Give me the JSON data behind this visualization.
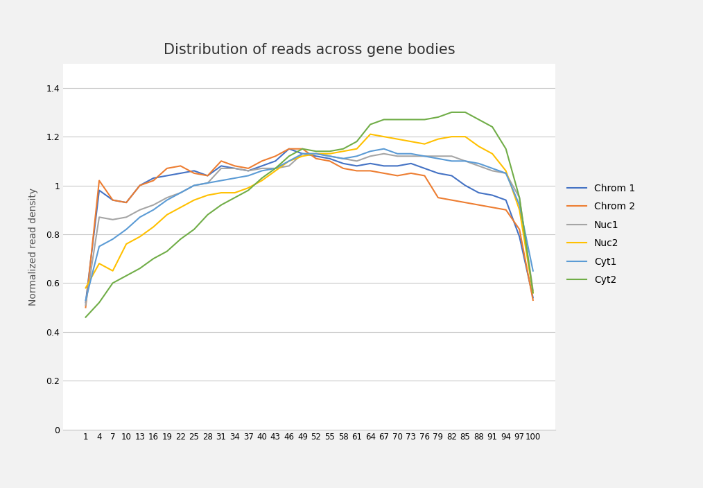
{
  "title": "Distribution of reads across gene bodies",
  "ylabel": "Normalized read density",
  "xlabel": "",
  "x_ticks": [
    1,
    4,
    7,
    10,
    13,
    16,
    19,
    22,
    25,
    28,
    31,
    34,
    37,
    40,
    43,
    46,
    49,
    52,
    55,
    58,
    61,
    64,
    67,
    70,
    73,
    76,
    79,
    82,
    85,
    88,
    91,
    94,
    97,
    100
  ],
  "ylim": [
    0,
    1.5
  ],
  "ytick_vals": [
    0,
    0.2,
    0.4,
    0.6,
    0.8,
    1.0,
    1.2,
    1.4
  ],
  "ytick_labels": [
    "0",
    "0.2",
    "0.4",
    "0.6",
    "0.8",
    "1",
    "1.2",
    "1.4"
  ],
  "fig_bg_color": "#f2f2f2",
  "plot_bg_color": "#ffffff",
  "series": {
    "Chrom 1": {
      "color": "#4472c4",
      "values": [
        0.52,
        0.98,
        0.94,
        0.93,
        1.0,
        1.03,
        1.04,
        1.05,
        1.06,
        1.04,
        1.08,
        1.07,
        1.06,
        1.08,
        1.1,
        1.15,
        1.13,
        1.12,
        1.11,
        1.09,
        1.08,
        1.09,
        1.08,
        1.08,
        1.09,
        1.07,
        1.05,
        1.04,
        1.0,
        0.97,
        0.96,
        0.94,
        0.79,
        0.54
      ]
    },
    "Chrom 2": {
      "color": "#ed7d31",
      "values": [
        0.5,
        1.02,
        0.94,
        0.93,
        1.0,
        1.02,
        1.07,
        1.08,
        1.05,
        1.04,
        1.1,
        1.08,
        1.07,
        1.1,
        1.12,
        1.15,
        1.15,
        1.11,
        1.1,
        1.07,
        1.06,
        1.06,
        1.05,
        1.04,
        1.05,
        1.04,
        0.95,
        0.94,
        0.93,
        0.92,
        0.91,
        0.9,
        0.82,
        0.53
      ]
    },
    "Nuc1": {
      "color": "#a5a5a5",
      "values": [
        0.51,
        0.87,
        0.86,
        0.87,
        0.9,
        0.92,
        0.95,
        0.97,
        1.0,
        1.01,
        1.07,
        1.07,
        1.06,
        1.07,
        1.07,
        1.08,
        1.13,
        1.13,
        1.12,
        1.11,
        1.1,
        1.12,
        1.13,
        1.12,
        1.12,
        1.12,
        1.12,
        1.12,
        1.1,
        1.08,
        1.06,
        1.05,
        0.95,
        0.57
      ]
    },
    "Nuc2": {
      "color": "#ffc000",
      "values": [
        0.58,
        0.68,
        0.65,
        0.76,
        0.79,
        0.83,
        0.88,
        0.91,
        0.94,
        0.96,
        0.97,
        0.97,
        0.99,
        1.02,
        1.06,
        1.1,
        1.12,
        1.13,
        1.13,
        1.14,
        1.15,
        1.21,
        1.2,
        1.19,
        1.18,
        1.17,
        1.19,
        1.2,
        1.2,
        1.16,
        1.13,
        1.06,
        0.9,
        0.56
      ]
    },
    "Cyt1": {
      "color": "#5b9bd5",
      "values": [
        0.53,
        0.75,
        0.78,
        0.82,
        0.87,
        0.9,
        0.94,
        0.97,
        1.0,
        1.01,
        1.02,
        1.03,
        1.04,
        1.06,
        1.07,
        1.1,
        1.13,
        1.13,
        1.12,
        1.11,
        1.12,
        1.14,
        1.15,
        1.13,
        1.13,
        1.12,
        1.11,
        1.1,
        1.1,
        1.09,
        1.07,
        1.05,
        0.92,
        0.65
      ]
    },
    "Cyt2": {
      "color": "#70ad47",
      "values": [
        0.46,
        0.52,
        0.6,
        0.63,
        0.66,
        0.7,
        0.73,
        0.78,
        0.82,
        0.88,
        0.92,
        0.95,
        0.98,
        1.03,
        1.07,
        1.12,
        1.15,
        1.14,
        1.14,
        1.15,
        1.18,
        1.25,
        1.27,
        1.27,
        1.27,
        1.27,
        1.28,
        1.3,
        1.3,
        1.27,
        1.24,
        1.15,
        0.95,
        0.56
      ]
    }
  },
  "legend_order": [
    "Chrom 1",
    "Chrom 2",
    "Nuc1",
    "Nuc2",
    "Cyt1",
    "Cyt2"
  ]
}
